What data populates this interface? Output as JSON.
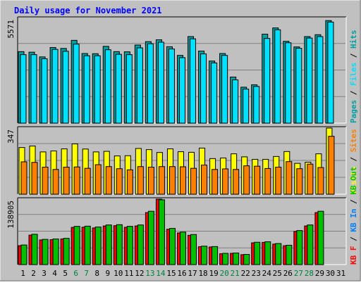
{
  "chart_data": [
    {
      "type": "bar",
      "title": "Daily usage for November 2021",
      "categories": [
        "1",
        "2",
        "3",
        "4",
        "5",
        "6",
        "7",
        "8",
        "9",
        "10",
        "11",
        "12",
        "13",
        "14",
        "15",
        "16",
        "17",
        "18",
        "19",
        "20",
        "21",
        "22",
        "23",
        "24",
        "25",
        "26",
        "27",
        "28",
        "29",
        "30",
        "31"
      ],
      "weekend_days": [
        "6",
        "7",
        "13",
        "14",
        "20",
        "21",
        "27",
        "28"
      ],
      "ymax_label": "5571",
      "ymax": 5571,
      "legend": [
        "Pages",
        "Files",
        "Hits"
      ],
      "series": [
        {
          "name": "Hits",
          "color": "#00A0A0",
          "values": [
            3800,
            3770,
            3520,
            4020,
            3970,
            4400,
            3700,
            3690,
            4080,
            3800,
            3790,
            4150,
            4330,
            4430,
            4060,
            3600,
            4600,
            3830,
            3300,
            3700,
            2450,
            1910,
            2040,
            4730,
            5060,
            4350,
            4050,
            4600,
            4700,
            5450,
            0
          ]
        },
        {
          "name": "Files",
          "color": "#00E0FF",
          "values": [
            3640,
            3640,
            3420,
            3920,
            3820,
            4200,
            3580,
            3580,
            3900,
            3660,
            3640,
            4000,
            4220,
            4300,
            3940,
            3480,
            4480,
            3680,
            3200,
            3600,
            2300,
            1810,
            1950,
            4500,
            4960,
            4270,
            3980,
            4520,
            4600,
            5370,
            0
          ]
        },
        {
          "name": "Pages",
          "color": "#00A0A0",
          "values": [
            0,
            0,
            0,
            0,
            0,
            0,
            0,
            0,
            0,
            0,
            0,
            0,
            0,
            0,
            0,
            0,
            0,
            0,
            0,
            0,
            0,
            0,
            0,
            0,
            0,
            0,
            0,
            0,
            0,
            0,
            0
          ]
        }
      ]
    },
    {
      "type": "bar",
      "ymax_label": "347",
      "ymax": 347,
      "legend": [
        "Visits",
        "Sites"
      ],
      "series": [
        {
          "name": "Visits",
          "color": "#FFFF00",
          "values": [
            245,
            253,
            222,
            227,
            238,
            264,
            237,
            222,
            225,
            201,
            202,
            240,
            234,
            219,
            238,
            223,
            220,
            242,
            187,
            190,
            212,
            196,
            183,
            183,
            198,
            224,
            162,
            168,
            212,
            347,
            0
          ]
        },
        {
          "name": "Sites",
          "color": "#FF8000",
          "values": [
            170,
            167,
            142,
            130,
            142,
            143,
            136,
            155,
            145,
            134,
            128,
            145,
            142,
            145,
            145,
            144,
            136,
            153,
            130,
            133,
            130,
            149,
            147,
            135,
            142,
            171,
            134,
            158,
            140,
            304,
            0
          ]
        }
      ]
    },
    {
      "type": "bar",
      "ymax_label": "138905",
      "ymax": 138905,
      "legend": [
        "KB F",
        "KB In",
        "KB Out"
      ],
      "series": [
        {
          "name": "KB F",
          "color": "#FF0000",
          "values": [
            40200,
            62600,
            52400,
            53000,
            54400,
            79000,
            79400,
            77800,
            82000,
            82600,
            79200,
            82000,
            110400,
            138905,
            75000,
            67200,
            62200,
            38100,
            37400,
            23200,
            23900,
            21100,
            46200,
            47200,
            43600,
            40100,
            70400,
            82000,
            110400,
            0,
            0
          ]
        },
        {
          "name": "KB In",
          "color": "#0080FF",
          "values": [
            0,
            0,
            0,
            0,
            0,
            0,
            0,
            0,
            0,
            0,
            0,
            0,
            0,
            0,
            0,
            0,
            0,
            0,
            0,
            0,
            0,
            0,
            0,
            0,
            0,
            0,
            0,
            0,
            0,
            0,
            0
          ]
        },
        {
          "name": "KB Out",
          "color": "#00C000",
          "values": [
            41600,
            64300,
            53600,
            54400,
            55800,
            81100,
            81600,
            79800,
            84100,
            84700,
            81200,
            84100,
            113200,
            137600,
            76900,
            68900,
            63800,
            39100,
            38300,
            23800,
            24500,
            21600,
            47400,
            48400,
            44700,
            41100,
            72200,
            84100,
            113200,
            0,
            0
          ]
        }
      ]
    }
  ],
  "colors": {
    "background": "#C0C0C0",
    "panel": "#C0C0C0",
    "title": "#0000FF",
    "weekend_label": "#008040",
    "weekday_label": "#000000"
  }
}
